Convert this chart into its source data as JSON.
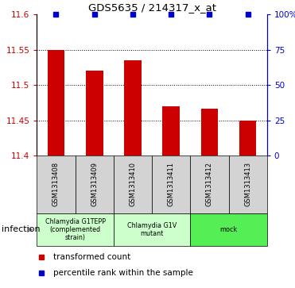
{
  "title": "GDS5635 / 214317_x_at",
  "samples": [
    "GSM1313408",
    "GSM1313409",
    "GSM1313410",
    "GSM1313411",
    "GSM1313412",
    "GSM1313413"
  ],
  "bar_values": [
    11.55,
    11.52,
    11.535,
    11.47,
    11.466,
    11.449
  ],
  "percentile_values": [
    100,
    100,
    100,
    100,
    100,
    100
  ],
  "bar_color": "#cc0000",
  "dot_color": "#0000cc",
  "ylim_left": [
    11.4,
    11.6
  ],
  "ylim_right": [
    0,
    100
  ],
  "yticks_left": [
    11.4,
    11.45,
    11.5,
    11.55,
    11.6
  ],
  "yticks_right": [
    0,
    25,
    50,
    75,
    100
  ],
  "yticklabels_left": [
    "11.4",
    "11.45",
    "11.5",
    "11.55",
    "11.6"
  ],
  "yticklabels_right": [
    "0",
    "25",
    "50",
    "75",
    "100%"
  ],
  "gridlines": [
    11.45,
    11.5,
    11.55
  ],
  "group_configs": [
    {
      "label": "Chlamydia G1TEPP\n(complemented\nstrain)",
      "xstart": -0.5,
      "xend": 1.5,
      "color": "#ccffcc"
    },
    {
      "label": "Chlamydia G1V\nmutant",
      "xstart": 1.5,
      "xend": 3.5,
      "color": "#ccffcc"
    },
    {
      "label": "mock",
      "xstart": 3.5,
      "xend": 5.5,
      "color": "#55ee55"
    }
  ],
  "infection_label": "infection",
  "legend_items": [
    {
      "color": "#cc0000",
      "label": "transformed count"
    },
    {
      "color": "#0000cc",
      "label": "percentile rank within the sample"
    }
  ],
  "bar_width": 0.45,
  "bar_bottom": 11.4,
  "bg_color": "#d3d3d3"
}
